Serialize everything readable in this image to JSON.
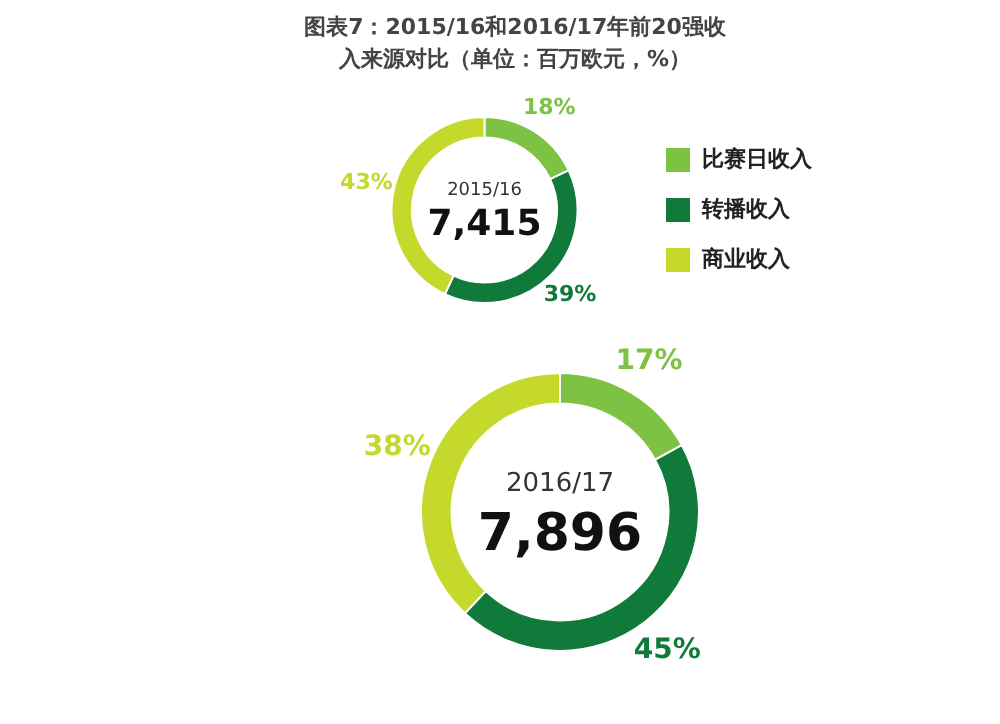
{
  "chart_data": [
    {
      "type": "donut",
      "title": "图表7：2015/16和2016/17年前20强收入来源对比（单位：百万欧元，%）",
      "subtitle": "2015/16",
      "annotations": [
        "7,415"
      ],
      "categories": [
        "比赛日收入",
        "转播收入",
        "商业收入"
      ],
      "values": [
        18,
        39,
        43
      ],
      "value_labels": [
        "18%",
        "39%",
        "43%"
      ],
      "colors": [
        "#7dc242",
        "#0f7a3a",
        "#c5d92d"
      ],
      "legend": "right"
    },
    {
      "type": "donut",
      "subtitle": "2016/17",
      "annotations": [
        "7,896"
      ],
      "categories": [
        null,
        null,
        null
      ],
      "values": [
        17,
        45,
        38
      ],
      "value_labels": [
        "17%",
        "45%",
        "38%"
      ],
      "colors": [
        "#7dc242",
        "#0f7a3a",
        "#c5d92d"
      ],
      "legend": false
    }
  ]
}
